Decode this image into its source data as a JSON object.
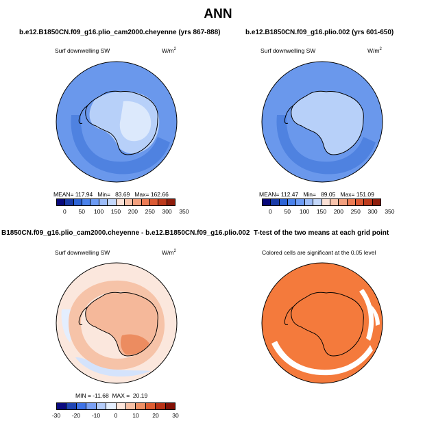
{
  "main_title": "ANN",
  "panels": [
    {
      "title": "b.e12.B1850CN.f09_g16.plio_cam2000.cheyenne (yrs 867-888)",
      "variable": "Surf downwelling SW",
      "units": "W/m",
      "units_sup": "2",
      "stats": "MEAN= 117.94   Min=   83.69   Max= 162.66",
      "colorbar_ticks": [
        "0",
        "50",
        "100",
        "150",
        "200",
        "250",
        "300",
        "350"
      ]
    },
    {
      "title": "b.e12.B1850CN.f09_g16.plio.002 (yrs 601-650)",
      "variable": "Surf downwelling SW",
      "units": "W/m",
      "units_sup": "2",
      "stats": "MEAN= 112.47   Min=   89.05   Max= 151.09",
      "colorbar_ticks": [
        "0",
        "50",
        "100",
        "150",
        "200",
        "250",
        "300",
        "350"
      ]
    },
    {
      "title": "B1850CN.f09_g16.plio_cam2000.cheyenne - b.e12.B1850CN.f09_g16.plio.002",
      "variable": "Surf downwelling SW",
      "units": "W/m",
      "units_sup": "2",
      "stats": "MIN = -11.68  MAX =  20.19",
      "colorbar_ticks": [
        "-30",
        "-20",
        "-10",
        "0",
        "10",
        "20",
        "30"
      ]
    },
    {
      "title": "T-test of the two means at each grid point",
      "note": "Colored cells are significant at the 0.05 level"
    }
  ],
  "colors": {
    "abs_scale": [
      "#08087a",
      "#1a3ca8",
      "#2d64d6",
      "#4a82ec",
      "#6d9cf5",
      "#9cbcf8",
      "#c4d8fb",
      "#fbe1d6",
      "#f8c3ab",
      "#f3a07e",
      "#ec7c55",
      "#dc5a34",
      "#bd3a1c",
      "#8e1d0c"
    ],
    "diff_scale": [
      "#0a0a80",
      "#1f45b4",
      "#3e72e6",
      "#7aa0f4",
      "#b4ccfa",
      "#e4eefe",
      "#fde6dc",
      "#f7c0a5",
      "#ef9065",
      "#de5d32",
      "#b93216",
      "#821106"
    ],
    "ocean_p1": "#6a98ec",
    "ocean_p2": "#6a98ec",
    "diff_background": "#fbe7dd",
    "ttest_fill": "#f47a3c"
  }
}
